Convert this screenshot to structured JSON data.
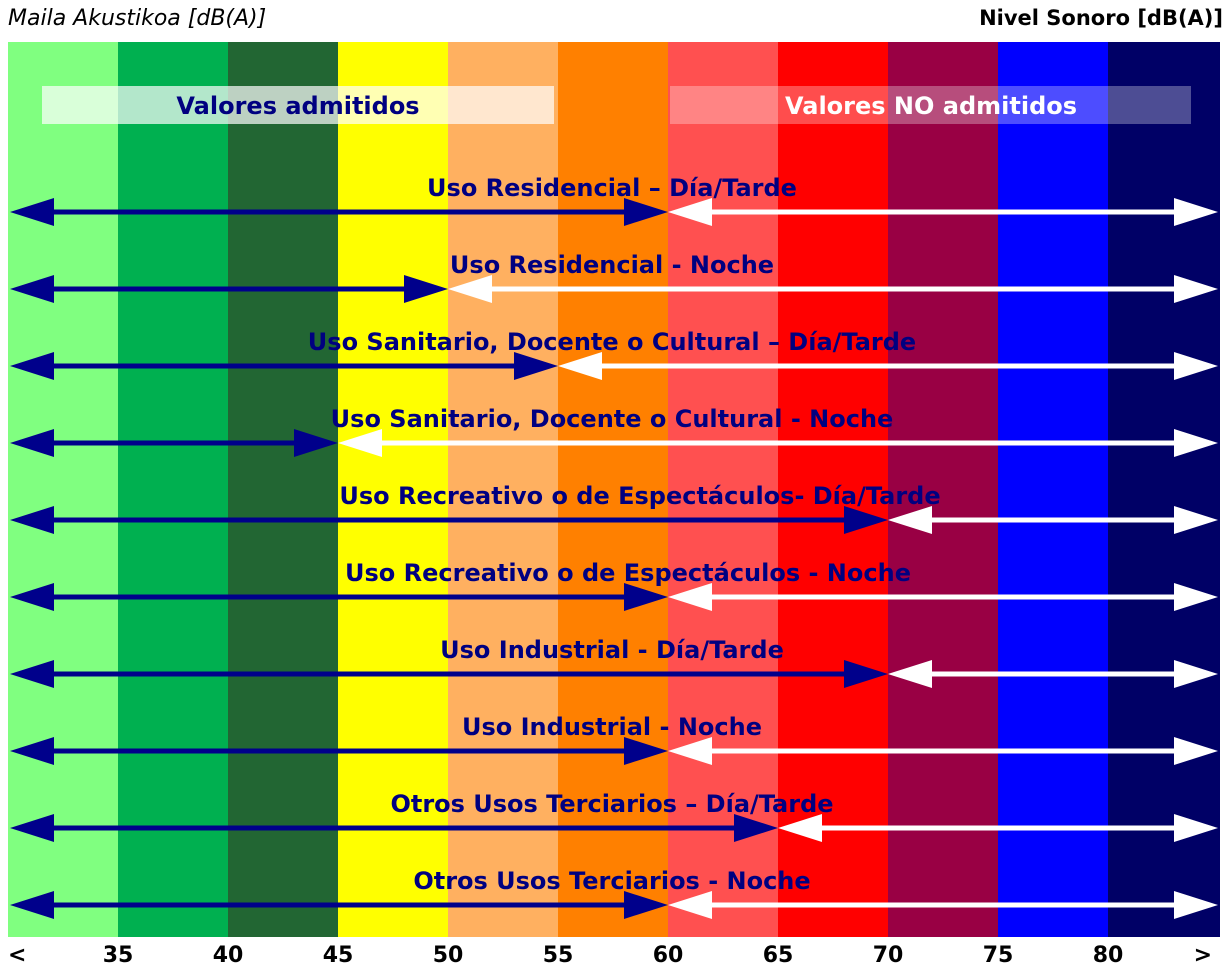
{
  "header": {
    "left_title": "Maila Akustikoa [dB(A)]",
    "right_title": "Nivel Sonoro [dB(A)]"
  },
  "legend": {
    "admitted": "Valores admitidos",
    "not_admitted": "Valores NO admitidos"
  },
  "colors": {
    "admitted_arrow": "#00008b",
    "not_admitted_arrow": "#ffffff",
    "label": "#000080"
  },
  "chart_data": {
    "type": "bar",
    "title": "",
    "xlabel": "",
    "ylabel": "",
    "scale_ticks": [
      "<",
      "35",
      "40",
      "45",
      "50",
      "55",
      "60",
      "65",
      "70",
      "75",
      "80",
      ">"
    ],
    "bands": [
      {
        "from": "<",
        "to": "35",
        "color": "#80ff80"
      },
      {
        "from": "35",
        "to": "40",
        "color": "#00b050"
      },
      {
        "from": "40",
        "to": "45",
        "color": "#226633"
      },
      {
        "from": "45",
        "to": "50",
        "color": "#ffff00"
      },
      {
        "from": "50",
        "to": "55",
        "color": "#ffb060"
      },
      {
        "from": "55",
        "to": "60",
        "color": "#ff8000"
      },
      {
        "from": "60",
        "to": "65",
        "color": "#ff5050"
      },
      {
        "from": "65",
        "to": "70",
        "color": "#ff0000"
      },
      {
        "from": "70",
        "to": "75",
        "color": "#990044"
      },
      {
        "from": "75",
        "to": "80",
        "color": "#0000ff"
      },
      {
        "from": "80",
        "to": ">",
        "color": "#000066"
      }
    ],
    "categories": [
      "Uso Residencial – Día/Tarde",
      "Uso Residencial - Noche",
      "Uso Sanitario, Docente o Cultural – Día/Tarde",
      "Uso Sanitario, Docente o Cultural - Noche",
      "Uso Recreativo o de Espectáculos- Día/Tarde",
      "Uso Recreativo o de Espectáculos - Noche",
      "Uso Industrial - Día/Tarde",
      "Uso Industrial - Noche",
      "Otros Usos Terciarios – Día/Tarde",
      "Otros Usos Terciarios - Noche"
    ],
    "limits": [
      60,
      50,
      55,
      45,
      70,
      60,
      70,
      60,
      65,
      60
    ]
  }
}
